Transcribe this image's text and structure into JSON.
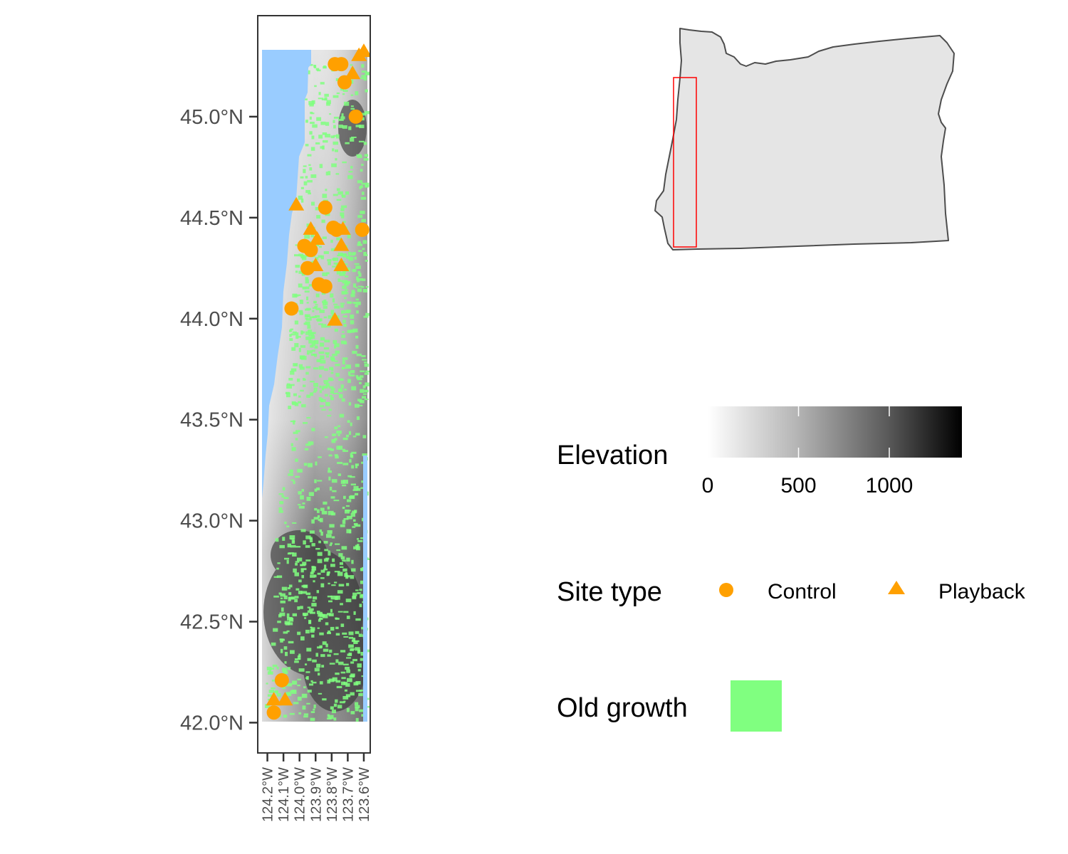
{
  "map": {
    "lat_ticks": [
      "45.0°N",
      "44.5°N",
      "44.0°N",
      "43.5°N",
      "43.0°N",
      "42.5°N",
      "42.0°N"
    ],
    "lon_ticks": [
      "124.2°W",
      "124.1°W",
      "124.0°W",
      "123.9°W",
      "123.8°W",
      "123.7°W",
      "123.6°W"
    ],
    "lat_range": [
      41.85,
      45.5
    ],
    "lon_range": [
      124.26,
      123.56
    ],
    "sites": [
      {
        "type": "Control",
        "lon": 123.78,
        "lat": 45.26
      },
      {
        "type": "Control",
        "lon": 123.74,
        "lat": 45.26
      },
      {
        "type": "Control",
        "lon": 123.72,
        "lat": 45.17
      },
      {
        "type": "Playback",
        "lon": 123.67,
        "lat": 45.21
      },
      {
        "type": "Playback",
        "lon": 123.63,
        "lat": 45.3
      },
      {
        "type": "Playback",
        "lon": 123.6,
        "lat": 45.32
      },
      {
        "type": "Control",
        "lon": 123.65,
        "lat": 45.0
      },
      {
        "type": "Playback",
        "lon": 124.02,
        "lat": 44.56
      },
      {
        "type": "Control",
        "lon": 123.84,
        "lat": 44.55
      },
      {
        "type": "Control",
        "lon": 123.79,
        "lat": 44.45
      },
      {
        "type": "Control",
        "lon": 123.77,
        "lat": 44.44
      },
      {
        "type": "Playback",
        "lon": 123.73,
        "lat": 44.44
      },
      {
        "type": "Control",
        "lon": 123.61,
        "lat": 44.44
      },
      {
        "type": "Playback",
        "lon": 123.93,
        "lat": 44.44
      },
      {
        "type": "Playback",
        "lon": 123.89,
        "lat": 44.39
      },
      {
        "type": "Control",
        "lon": 123.97,
        "lat": 44.36
      },
      {
        "type": "Control",
        "lon": 123.93,
        "lat": 44.34
      },
      {
        "type": "Playback",
        "lon": 123.74,
        "lat": 44.36
      },
      {
        "type": "Control",
        "lon": 123.95,
        "lat": 44.25
      },
      {
        "type": "Playback",
        "lon": 123.9,
        "lat": 44.26
      },
      {
        "type": "Playback",
        "lon": 123.74,
        "lat": 44.26
      },
      {
        "type": "Control",
        "lon": 123.88,
        "lat": 44.17
      },
      {
        "type": "Control",
        "lon": 123.84,
        "lat": 44.16
      },
      {
        "type": "Control",
        "lon": 124.05,
        "lat": 44.05
      },
      {
        "type": "Playback",
        "lon": 123.78,
        "lat": 43.99
      },
      {
        "type": "Control",
        "lon": 124.11,
        "lat": 42.21
      },
      {
        "type": "Playback",
        "lon": 124.16,
        "lat": 42.11
      },
      {
        "type": "Playback",
        "lon": 124.09,
        "lat": 42.11
      },
      {
        "type": "Control",
        "lon": 124.16,
        "lat": 42.05
      }
    ]
  },
  "legend": {
    "elevation": {
      "title": "Elevation",
      "ticks": [
        "0",
        "500",
        "1000"
      ],
      "range": [
        0,
        1400
      ]
    },
    "site_type": {
      "title": "Site type",
      "items": [
        {
          "label": "Control",
          "shape": "circle"
        },
        {
          "label": "Playback",
          "shape": "triangle"
        }
      ]
    },
    "old_growth": {
      "title": "Old growth"
    }
  },
  "colors": {
    "site": "#FFA000",
    "ocean": "#99CCFF",
    "old_growth": "#80FF80",
    "state_fill": "#E5E5E5",
    "state_outline": "#4d4d4d",
    "inset_box": "#FF0000",
    "panel_border": "#333333"
  }
}
